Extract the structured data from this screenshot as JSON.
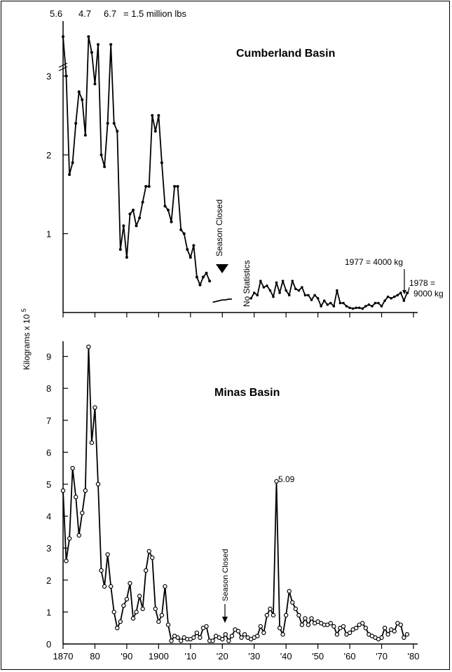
{
  "chart_data": [
    {
      "type": "line",
      "title": "Cumberland Basin",
      "ylim": [
        0,
        3.6
      ],
      "y_ticks": [
        "1",
        "2",
        "3"
      ],
      "x_range": [
        1870,
        1980
      ],
      "top_notes": [
        "5.6",
        "4.7",
        "6.7",
        "= 1.5 million lbs"
      ],
      "annotations": {
        "season_closed": "Season Closed",
        "no_statistics": "No Statistics",
        "y1977": "1977 = 4000 kg",
        "y1978a": "1978 =",
        "y1978b": "9000 kg"
      },
      "x": [
        1870,
        1871,
        1872,
        1873,
        1874,
        1875,
        1876,
        1877,
        1878,
        1879,
        1880,
        1881,
        1882,
        1883,
        1884,
        1885,
        1886,
        1887,
        1888,
        1889,
        1890,
        1891,
        1892,
        1893,
        1894,
        1895,
        1896,
        1897,
        1898,
        1899,
        1900,
        1901,
        1902,
        1903,
        1904,
        1905,
        1906,
        1907,
        1908,
        1909,
        1910,
        1911,
        1912,
        1913,
        1914,
        1915,
        1916
      ],
      "values": [
        3.5,
        3.0,
        1.75,
        1.9,
        2.4,
        2.8,
        2.7,
        2.25,
        3.5,
        3.3,
        2.9,
        3.4,
        2.0,
        1.85,
        2.4,
        3.4,
        2.4,
        2.3,
        0.8,
        1.1,
        0.7,
        1.25,
        1.3,
        1.1,
        1.2,
        1.4,
        1.6,
        1.6,
        2.5,
        2.3,
        2.5,
        1.9,
        1.35,
        1.3,
        1.15,
        1.6,
        1.6,
        1.05,
        1.0,
        0.8,
        0.7,
        0.85,
        0.45,
        0.35,
        0.45,
        0.5,
        0.4
      ],
      "sparse_x": [
        1917,
        1918,
        1919,
        1920,
        1921,
        1922,
        1923
      ],
      "sparse_values": [
        0.13,
        0.14,
        0.15,
        0.16,
        0.16,
        0.17,
        0.17
      ],
      "late_x": [
        1929,
        1930,
        1931,
        1932,
        1933,
        1934,
        1935,
        1936,
        1937,
        1938,
        1939,
        1940,
        1941,
        1942,
        1943,
        1944,
        1945,
        1946,
        1947,
        1948,
        1949,
        1950,
        1951,
        1952,
        1953,
        1954,
        1955,
        1956,
        1957,
        1958,
        1959,
        1960,
        1961,
        1962,
        1963,
        1964,
        1965,
        1966,
        1967,
        1968,
        1969,
        1970,
        1971,
        1972,
        1973,
        1974,
        1975,
        1976,
        1977,
        1978
      ],
      "late_values": [
        0.18,
        0.25,
        0.22,
        0.4,
        0.32,
        0.34,
        0.28,
        0.2,
        0.38,
        0.25,
        0.4,
        0.28,
        0.22,
        0.4,
        0.3,
        0.28,
        0.32,
        0.22,
        0.22,
        0.16,
        0.22,
        0.18,
        0.08,
        0.15,
        0.1,
        0.12,
        0.08,
        0.28,
        0.12,
        0.12,
        0.08,
        0.06,
        0.05,
        0.06,
        0.06,
        0.05,
        0.08,
        0.1,
        0.08,
        0.12,
        0.12,
        0.08,
        0.15,
        0.2,
        0.18,
        0.2,
        0.22,
        0.25,
        0.15,
        0.25
      ]
    },
    {
      "type": "line",
      "title": "Minas Basin",
      "ylabel": "Kilograms x 10",
      "ylabel_exp": "5",
      "ylim": [
        0,
        9.6
      ],
      "y_ticks": [
        "0",
        "1",
        "2",
        "3",
        "4",
        "5",
        "6",
        "7",
        "8",
        "9"
      ],
      "x_ticks": [
        "1870",
        "80",
        "'90",
        "1900",
        "'10",
        "'20",
        "'30",
        "'40",
        "'50",
        "'60",
        "'70",
        "'80"
      ],
      "x_tick_years": [
        1870,
        1880,
        1890,
        1900,
        1910,
        1920,
        1930,
        1940,
        1950,
        1960,
        1970,
        1980
      ],
      "peak_label": "5.09",
      "season_closed": "Season Closed",
      "x": [
        1870,
        1871,
        1872,
        1873,
        1874,
        1875,
        1876,
        1877,
        1878,
        1879,
        1880,
        1881,
        1882,
        1883,
        1884,
        1885,
        1886,
        1887,
        1888,
        1889,
        1890,
        1891,
        1892,
        1893,
        1894,
        1895,
        1896,
        1897,
        1898,
        1899,
        1900,
        1901,
        1902,
        1903,
        1904,
        1905,
        1906,
        1907,
        1908,
        1909,
        1910,
        1911,
        1912,
        1913,
        1914,
        1915,
        1916,
        1917,
        1918,
        1919,
        1920,
        1921,
        1922,
        1923,
        1924,
        1925,
        1926,
        1927,
        1928,
        1929,
        1930,
        1931,
        1932,
        1933,
        1934,
        1935,
        1936,
        1937,
        1938,
        1939,
        1940,
        1941,
        1942,
        1943,
        1944,
        1945,
        1946,
        1947,
        1948,
        1949,
        1950,
        1951,
        1952,
        1953,
        1954,
        1955,
        1956,
        1957,
        1958,
        1959,
        1960,
        1961,
        1962,
        1963,
        1964,
        1965,
        1966,
        1967,
        1968,
        1969,
        1970,
        1971,
        1972,
        1973,
        1974,
        1975,
        1976,
        1977,
        1978
      ],
      "values": [
        4.8,
        2.6,
        3.3,
        5.5,
        4.6,
        3.4,
        4.1,
        4.8,
        9.3,
        6.3,
        7.4,
        5.0,
        2.3,
        1.8,
        2.8,
        1.8,
        1.0,
        0.5,
        0.7,
        1.2,
        1.4,
        1.9,
        0.8,
        1.0,
        1.5,
        1.1,
        2.3,
        2.9,
        2.7,
        1.1,
        0.7,
        0.9,
        1.8,
        0.6,
        0.1,
        0.25,
        0.2,
        0.1,
        0.2,
        0.15,
        0.15,
        0.2,
        0.35,
        0.2,
        0.5,
        0.55,
        0.1,
        0.1,
        0.25,
        0.2,
        0.15,
        0.3,
        0.1,
        0.25,
        0.45,
        0.4,
        0.2,
        0.3,
        0.2,
        0.15,
        0.2,
        0.25,
        0.55,
        0.35,
        0.9,
        1.1,
        0.9,
        5.09,
        0.5,
        0.3,
        0.9,
        1.65,
        1.3,
        1.1,
        0.9,
        0.6,
        0.8,
        0.6,
        0.8,
        0.65,
        0.7,
        0.65,
        0.6,
        0.6,
        0.65,
        0.55,
        0.3,
        0.5,
        0.55,
        0.3,
        0.35,
        0.45,
        0.5,
        0.6,
        0.65,
        0.5,
        0.3,
        0.25,
        0.2,
        0.15,
        0.2,
        0.5,
        0.3,
        0.45,
        0.4,
        0.65,
        0.6,
        0.2,
        0.3
      ]
    }
  ]
}
